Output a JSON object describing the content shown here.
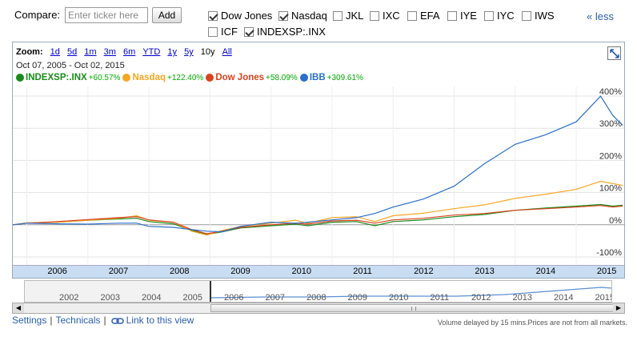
{
  "compare": {
    "label": "Compare:",
    "placeholder": "Enter ticker here",
    "add_label": "Add",
    "less_label": "« less",
    "checkboxes": [
      {
        "label": "Dow Jones",
        "checked": true
      },
      {
        "label": "Nasdaq",
        "checked": true
      },
      {
        "label": "JKL",
        "checked": false
      },
      {
        "label": "IXC",
        "checked": false
      },
      {
        "label": "EFA",
        "checked": false
      },
      {
        "label": "IYE",
        "checked": false
      },
      {
        "label": "IYC",
        "checked": false
      },
      {
        "label": "IWS",
        "checked": false
      },
      {
        "label": "ICF",
        "checked": false
      },
      {
        "label": "INDEXSP:.INX",
        "checked": true
      }
    ]
  },
  "zoom": {
    "label": "Zoom:",
    "options": [
      "1d",
      "5d",
      "1m",
      "3m",
      "6m",
      "YTD",
      "1y",
      "5y",
      "10y",
      "All"
    ],
    "active": "10y"
  },
  "range": {
    "start": "Oct 07, 2005",
    "sep": "-",
    "end": "Oct 02, 2015"
  },
  "legend": [
    {
      "name": "INDEXSP:.INX",
      "pct": "+60.57%",
      "color": "#1a8a1a"
    },
    {
      "name": "Nasdaq",
      "pct": "+122.40%",
      "color": "#f5a623"
    },
    {
      "name": "Dow Jones",
      "pct": "+58.09%",
      "color": "#d9431f"
    },
    {
      "name": "IBB",
      "pct": "+309.61%",
      "color": "#2a6fc9"
    }
  ],
  "chart_data": {
    "type": "line",
    "x": [
      2005.77,
      2006.0,
      2006.5,
      2007.0,
      2007.5,
      2007.8,
      2008.0,
      2008.4,
      2008.7,
      2008.95,
      2009.2,
      2009.5,
      2010.0,
      2010.4,
      2010.6,
      2011.0,
      2011.4,
      2011.7,
      2012.0,
      2012.5,
      2013.0,
      2013.5,
      2014.0,
      2014.5,
      2015.0,
      2015.4,
      2015.6,
      2015.76
    ],
    "series": [
      {
        "name": "INDEXSP:.INX",
        "values": [
          0,
          5,
          8,
          14,
          18,
          20,
          10,
          3,
          -18,
          -30,
          -22,
          -10,
          -3,
          2,
          -3,
          8,
          10,
          -3,
          10,
          15,
          25,
          32,
          45,
          52,
          58,
          63,
          58,
          60.57
        ]
      },
      {
        "name": "Nasdaq",
        "values": [
          0,
          6,
          8,
          14,
          20,
          28,
          14,
          8,
          -20,
          -32,
          -18,
          -5,
          5,
          14,
          5,
          22,
          25,
          10,
          28,
          36,
          50,
          62,
          82,
          95,
          110,
          135,
          128,
          122.4
        ]
      },
      {
        "name": "Dow Jones",
        "values": [
          0,
          5,
          10,
          16,
          22,
          25,
          15,
          8,
          -15,
          -28,
          -20,
          -8,
          0,
          5,
          2,
          12,
          14,
          5,
          15,
          20,
          30,
          35,
          45,
          50,
          55,
          60,
          55,
          58.09
        ]
      },
      {
        "name": "IBB",
        "values": [
          0,
          5,
          3,
          2,
          5,
          5,
          -5,
          -8,
          -15,
          -20,
          -22,
          -5,
          8,
          5,
          8,
          15,
          22,
          35,
          55,
          80,
          120,
          190,
          250,
          280,
          320,
          400,
          340,
          309.61
        ]
      }
    ],
    "ylim": [
      -125,
      430
    ],
    "y_ticks": [
      "400%",
      "300%",
      "200%",
      "100%",
      "0%",
      "-100%"
    ],
    "y_tick_values": [
      400,
      300,
      200,
      100,
      0,
      -100
    ],
    "x_ticks": [
      "2006",
      "2007",
      "2008",
      "2009",
      "2010",
      "2011",
      "2012",
      "2013",
      "2014",
      "2015"
    ],
    "x_tick_values": [
      2006.5,
      2007.5,
      2008.5,
      2009.5,
      2010.5,
      2011.5,
      2012.5,
      2013.5,
      2014.5,
      2015.5
    ],
    "xlim": [
      2005.77,
      2015.76
    ],
    "grid": true
  },
  "navigator": {
    "years": [
      "2002",
      "2003",
      "2004",
      "2005",
      "2006",
      "2007",
      "2008",
      "2009",
      "2010",
      "2011",
      "2012",
      "2013",
      "2014",
      "2015"
    ]
  },
  "footer": {
    "settings": "Settings",
    "technicals": "Technicals",
    "link": "Link to this view",
    "disclaimer": "Volume delayed by 15 mins.Prices are not from all markets."
  }
}
